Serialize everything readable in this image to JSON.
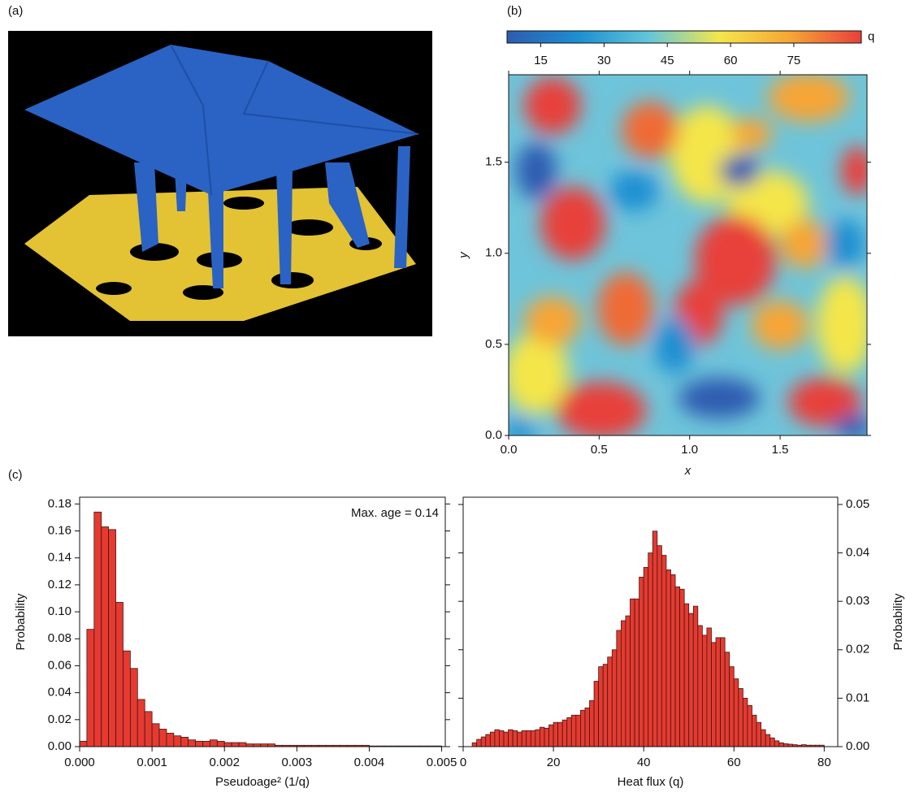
{
  "panels": [
    "(a)",
    "(b)",
    "(c)"
  ],
  "chart_data": [
    {
      "type": "heatmap",
      "xlabel": "x",
      "ylabel": "y",
      "xlim": [
        0,
        1.98
      ],
      "ylim": [
        0,
        1.98
      ],
      "xticks": [
        {
          "value": 0,
          "label": "0.0"
        },
        0.5,
        {
          "value": 1,
          "label": "1.0"
        },
        1.5
      ],
      "yticks": [
        {
          "value": 0,
          "label": "0.0"
        },
        0.5,
        {
          "value": 1,
          "label": "1.0"
        },
        1.5
      ],
      "colorbar": {
        "label": "q",
        "lim": [
          7,
          91
        ],
        "ticks": [
          15,
          30,
          45,
          60,
          75
        ],
        "colors": [
          "#2e5cb0",
          "#1c8fd2",
          "#62c6da",
          "#f4e64a",
          "#f7a534",
          "#e8403a"
        ]
      }
    },
    {
      "type": "histogram",
      "xlabel": "Pseudoage² (1/q)",
      "ylabel": "Probability",
      "annotation": "Max. age = 0.14",
      "y_axis_side": "left",
      "color": "#e63a30",
      "xlim": [
        0,
        0.00505
      ],
      "ylim": [
        0,
        0.185
      ],
      "xticks": [
        {
          "value": 0,
          "label": "0.000"
        },
        0.001,
        0.002,
        0.003,
        0.004,
        0.005
      ],
      "yticks": [
        {
          "value": 0,
          "label": "0.00"
        },
        0.02,
        0.04,
        0.06,
        0.08,
        {
          "value": 0.1,
          "label": "0.10"
        },
        0.12,
        0.14,
        0.16,
        0.18
      ],
      "bins": [
        0,
        0.0001,
        0.0002,
        0.0003,
        0.0004,
        0.0005,
        0.0006,
        0.0007,
        0.0008,
        0.0009,
        0.001,
        0.0011,
        0.0012,
        0.0013,
        0.0014,
        0.0015,
        0.0016,
        0.0017,
        0.0018,
        0.0019,
        0.002,
        0.0021,
        0.0022,
        0.0023,
        0.0024,
        0.0025,
        0.0026,
        0.0027,
        0.0028,
        0.0029,
        0.003,
        0.0031,
        0.0032,
        0.0033,
        0.0034,
        0.0035,
        0.0036,
        0.0037,
        0.0038,
        0.0039,
        0.004,
        0.0041,
        0.0042,
        0.0043,
        0.0044,
        0.0045,
        0.0046,
        0.0047,
        0.0048,
        0.0049,
        0.005
      ],
      "values": [
        0.004,
        0.087,
        0.174,
        0.163,
        0.161,
        0.107,
        0.071,
        0.058,
        0.035,
        0.026,
        0.017,
        0.013,
        0.01,
        0.008,
        0.007,
        0.005,
        0.004,
        0.004,
        0.005,
        0.004,
        0.003,
        0.003,
        0.003,
        0.002,
        0.002,
        0.002,
        0.002,
        0.001,
        0.001,
        0.001,
        0.001,
        0.001,
        0.001,
        0.001,
        0.001,
        0.001,
        0.001,
        0.001,
        0.001,
        0.001,
        0.0005,
        0.0005,
        0.0005,
        0.0005,
        0.0005,
        0.0005,
        0.0005,
        0.0005,
        0.0005,
        0.0005
      ]
    },
    {
      "type": "histogram",
      "xlabel": "Heat flux (q)",
      "ylabel": "Probability",
      "y_axis_side": "right",
      "color": "#e63a30",
      "xlim": [
        0,
        83
      ],
      "ylim": [
        0,
        0.0515
      ],
      "xticks": [
        0,
        20,
        40,
        60,
        80
      ],
      "yticks": [
        {
          "value": 0,
          "label": "0.00"
        },
        0.01,
        0.02,
        0.03,
        0.04,
        0.05
      ],
      "bins": [
        2,
        3,
        4,
        5,
        6,
        7,
        8,
        9,
        10,
        11,
        12,
        13,
        14,
        15,
        16,
        17,
        18,
        19,
        20,
        21,
        22,
        23,
        24,
        25,
        26,
        27,
        28,
        29,
        30,
        31,
        32,
        33,
        34,
        35,
        36,
        37,
        38,
        39,
        40,
        41,
        42,
        43,
        44,
        45,
        46,
        47,
        48,
        49,
        50,
        51,
        52,
        53,
        54,
        55,
        56,
        57,
        58,
        59,
        60,
        61,
        62,
        63,
        64,
        65,
        66,
        67,
        68,
        69,
        70,
        71,
        72,
        73,
        74,
        75,
        76,
        77,
        78,
        79,
        80
      ],
      "values": [
        0.0008,
        0.0015,
        0.002,
        0.0025,
        0.003,
        0.0035,
        0.0033,
        0.003,
        0.0035,
        0.0033,
        0.003,
        0.0033,
        0.0033,
        0.0033,
        0.0035,
        0.004,
        0.0038,
        0.0045,
        0.005,
        0.005,
        0.0055,
        0.006,
        0.0065,
        0.0065,
        0.0075,
        0.008,
        0.0095,
        0.0135,
        0.0165,
        0.017,
        0.0185,
        0.02,
        0.024,
        0.026,
        0.027,
        0.0305,
        0.0305,
        0.035,
        0.037,
        0.04,
        0.0445,
        0.0415,
        0.0395,
        0.0365,
        0.0355,
        0.033,
        0.0325,
        0.0295,
        0.0275,
        0.029,
        0.025,
        0.023,
        0.0245,
        0.0215,
        0.0225,
        0.0225,
        0.0195,
        0.0165,
        0.014,
        0.012,
        0.01,
        0.0085,
        0.0065,
        0.005,
        0.0035,
        0.0025,
        0.0018,
        0.0012,
        0.0008,
        0.0006,
        0.0005,
        0.0004,
        0.0003,
        0.0004,
        0.0003,
        0.0003,
        0.0003,
        0.0003
      ]
    }
  ]
}
